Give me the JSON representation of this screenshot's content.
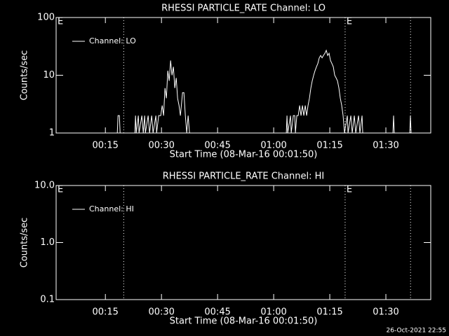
{
  "chart_data": [
    {
      "type": "line",
      "title": "RHESSI PARTICLE_RATE Channel: LO",
      "xlabel": "Start Time (08-Mar-16 00:01:50)",
      "ylabel": "Counts/sec",
      "log": true,
      "legend": "top-left",
      "xlim": [
        1.83,
        102
      ],
      "ylim": [
        1,
        100
      ],
      "xticks": [
        {
          "value": 15,
          "label": "00:15"
        },
        {
          "value": 30,
          "label": "00:30"
        },
        {
          "value": 45,
          "label": "00:45"
        },
        {
          "value": 60,
          "label": "01:00"
        },
        {
          "value": 75,
          "label": "01:15"
        },
        {
          "value": 90,
          "label": "01:30"
        }
      ],
      "yticks": [
        1,
        10,
        100
      ],
      "vlines": [
        19.9,
        79.1,
        96.6
      ],
      "annotations": [
        {
          "text": "E",
          "x": 1.83
        },
        {
          "text": "E",
          "x": 79.1
        }
      ],
      "x": [
        15,
        18.19,
        18.38,
        18.75,
        18.94,
        22.88,
        23.06,
        23.25,
        23.81,
        24,
        24.75,
        25.13,
        25.5,
        25.69,
        26.44,
        26.81,
        27.38,
        27.75,
        28.5,
        28.69,
        29.25,
        29.81,
        30.19,
        30.56,
        30.94,
        31.31,
        31.69,
        32.06,
        32.44,
        32.81,
        33.19,
        33.56,
        33.94,
        34.31,
        34.69,
        35.06,
        35.63,
        36,
        36.38,
        36.75,
        37.13,
        37.5,
        63.38,
        63.56,
        63.75,
        64.5,
        64.69,
        65.25,
        65.63,
        65.81,
        66.19,
        66.56,
        66.94,
        67.31,
        67.69,
        68.06,
        68.44,
        68.81,
        69.19,
        69.56,
        69.94,
        70.31,
        70.69,
        71.06,
        71.44,
        71.81,
        72.19,
        72.56,
        72.94,
        73.31,
        73.69,
        74.06,
        74.44,
        74.81,
        75.19,
        75.56,
        75.94,
        76.31,
        76.69,
        77.06,
        77.44,
        77.81,
        78.19,
        78.56,
        78.94,
        79.69,
        79.88,
        80.63,
        81,
        81.56,
        81.94,
        82.69,
        83.06,
        83.63,
        83.81,
        91.88,
        92.06,
        92.25,
        96.38,
        96.56,
        96.75
      ],
      "series": [
        {
          "name": "Channel: LO",
          "color": "#ffffff",
          "values": [
            1,
            1,
            2,
            2,
            1,
            1,
            2,
            1,
            2,
            1,
            2,
            1,
            2,
            1,
            2,
            1,
            2,
            1,
            2,
            1,
            2,
            2,
            3,
            2,
            6,
            4,
            12,
            8,
            18,
            10,
            14,
            6,
            9,
            4,
            3,
            2,
            5,
            5,
            2,
            1,
            2,
            1,
            1,
            2,
            1,
            2,
            1,
            2,
            2,
            1,
            2,
            2,
            3,
            2,
            3,
            2,
            3,
            2,
            3,
            4,
            6,
            8,
            10,
            12,
            14,
            16,
            20,
            22,
            20,
            22,
            24,
            27,
            22,
            24,
            18,
            16,
            14,
            10,
            9,
            8,
            6,
            4,
            3,
            2,
            1,
            2,
            1,
            2,
            1,
            2,
            1,
            2,
            1,
            2,
            1,
            1,
            2,
            1,
            1,
            2,
            1
          ]
        }
      ]
    },
    {
      "type": "line",
      "title": "RHESSI PARTICLE_RATE Channel: HI",
      "xlabel": "Start Time (08-Mar-16 00:01:50)",
      "ylabel": "Counts/sec",
      "log": true,
      "legend": "top-left",
      "xlim": [
        1.83,
        102
      ],
      "ylim": [
        0.1,
        10
      ],
      "xticks": [
        {
          "value": 15,
          "label": "00:15"
        },
        {
          "value": 30,
          "label": "00:30"
        },
        {
          "value": 45,
          "label": "00:45"
        },
        {
          "value": 60,
          "label": "01:00"
        },
        {
          "value": 75,
          "label": "01:15"
        },
        {
          "value": 90,
          "label": "01:30"
        }
      ],
      "yticks": [
        0.1,
        {
          "value": 1,
          "label": "1.0"
        },
        {
          "value": 10,
          "label": "10.0"
        }
      ],
      "vlines": [
        19.9,
        79.1,
        96.6
      ],
      "annotations": [
        {
          "text": "E",
          "x": 1.83
        },
        {
          "text": "E",
          "x": 79.1
        }
      ],
      "x": [],
      "series": [
        {
          "name": "Channel: HI",
          "color": "#ffffff",
          "values": []
        }
      ]
    }
  ],
  "footer": "26-Oct-2021 22:55"
}
